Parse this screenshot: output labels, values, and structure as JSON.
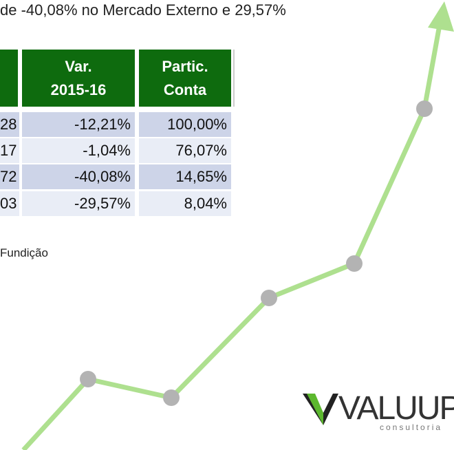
{
  "intro_text": "de -40,08% no Mercado Externo e 29,57%",
  "table": {
    "header": [
      [
        "Var.",
        "2015-16"
      ],
      [
        "Partic.",
        "Conta"
      ]
    ],
    "rows": [
      [
        "28",
        "-12,21%",
        "100,00%"
      ],
      [
        "17",
        "-1,04%",
        "76,07%"
      ],
      [
        "72",
        "-40,08%",
        "14,65%"
      ],
      [
        "03",
        "-29,57%",
        "8,04%"
      ]
    ]
  },
  "footnote": "Fundição",
  "logo": {
    "name": "VALUUP",
    "tagline": "consultoria"
  }
}
